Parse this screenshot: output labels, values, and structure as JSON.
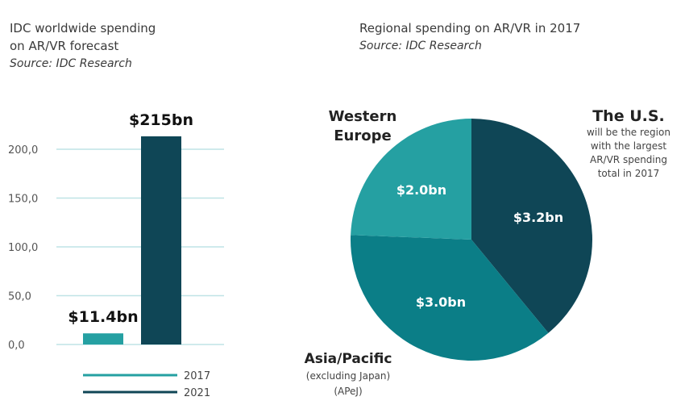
{
  "left_panel": {
    "title_line1": "IDC worldwide spending",
    "title_line2": "on AR/VR forecast",
    "source": "Source: IDC Research"
  },
  "right_panel": {
    "title": "Regional spending on AR/VR in 2017",
    "source": "Source: IDC Research",
    "us_label": "The U.S.",
    "us_note": [
      "will be the region",
      "with the largest",
      "AR/VR spending",
      "total in 2017"
    ],
    "we_label": [
      "Western",
      "Europe"
    ],
    "apac_label": "Asia/Pacific",
    "apac_note": [
      "(excluding Japan)",
      "(APeJ)"
    ]
  },
  "colors": {
    "teal_light": "#25a0a2",
    "teal_mid": "#0b7e87",
    "navy": "#0f4656",
    "grid": "#bfe3e6"
  },
  "chart_data": [
    {
      "type": "bar",
      "categories": [
        "2017",
        "2021"
      ],
      "values": [
        11.4,
        215
      ],
      "value_labels": [
        "$11.4bn",
        "$215bn"
      ],
      "yticks": [
        "0,0",
        "50,0",
        "100,0",
        "150,0",
        "200,0"
      ],
      "ylim": [
        0,
        200
      ],
      "series_colors": [
        "#25a0a2",
        "#0f4656"
      ],
      "legend": [
        "2017",
        "2021"
      ],
      "legend_position": "bottom",
      "grid": true
    },
    {
      "type": "pie",
      "labels": [
        "The U.S.",
        "Asia/Pacific",
        "Western Europe"
      ],
      "values": [
        3.2,
        3.0,
        2.0
      ],
      "value_labels": [
        "$3.2bn",
        "$3.0bn",
        "$2.0bn"
      ],
      "colors": [
        "#0f4656",
        "#0b7e87",
        "#25a0a2"
      ]
    }
  ]
}
